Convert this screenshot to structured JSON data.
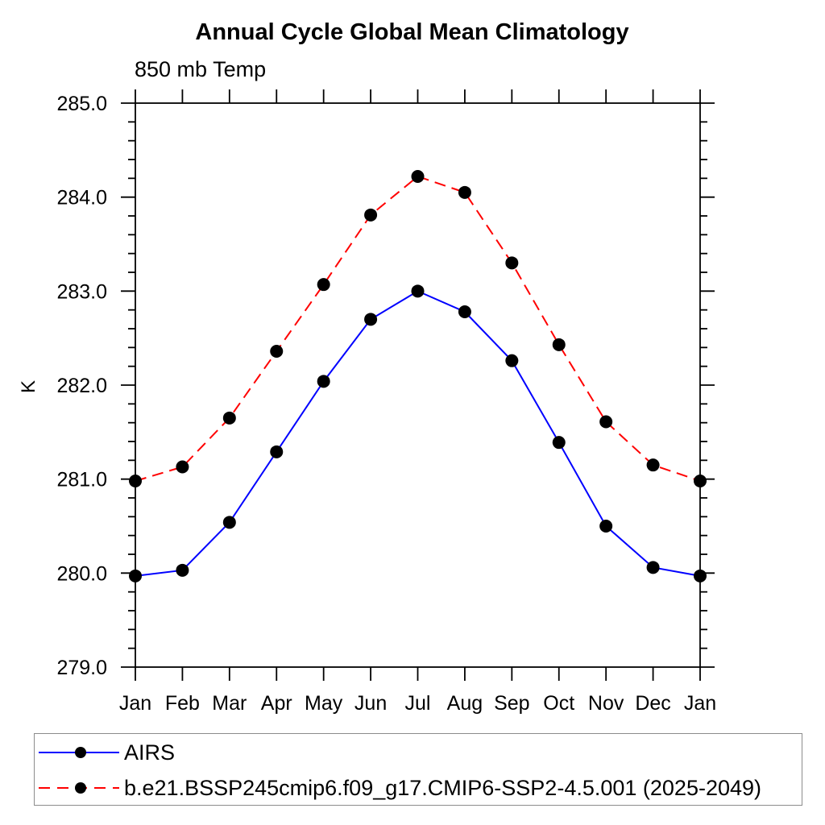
{
  "chart_data": {
    "type": "line",
    "title": "Annual Cycle Global Mean Climatology",
    "subtitle": "850 mb Temp",
    "ylabel": "K",
    "xlabel": "",
    "ylim": [
      279.0,
      285.0
    ],
    "y_major_step": 1.0,
    "y_minor_step": 0.2,
    "y_tick_labels": [
      "279.0",
      "280.0",
      "281.0",
      "282.0",
      "283.0",
      "284.0",
      "285.0"
    ],
    "x_tick_labels": [
      "Jan",
      "Feb",
      "Mar",
      "Apr",
      "May",
      "Jun",
      "Jul",
      "Aug",
      "Sep",
      "Oct",
      "Nov",
      "Dec",
      "Jan"
    ],
    "grid": false,
    "legend_position": "bottom-left",
    "axis_color": "#000000",
    "marker_color": "#000000",
    "marker_shape": "filled-circle",
    "series": [
      {
        "name": "AIRS",
        "color": "#0000ff",
        "style": "solid",
        "values": [
          279.97,
          280.03,
          280.54,
          281.29,
          282.04,
          282.7,
          283.0,
          282.78,
          282.26,
          281.39,
          280.5,
          280.06,
          279.97
        ]
      },
      {
        "name": "b.e21.BSSP245cmip6.f09_g17.CMIP6-SSP2-4.5.001 (2025-2049)",
        "color": "#ff0000",
        "style": "dashed",
        "values": [
          280.98,
          281.13,
          281.65,
          282.36,
          283.07,
          283.81,
          284.22,
          284.05,
          283.3,
          282.43,
          281.61,
          281.15,
          280.98
        ]
      }
    ]
  }
}
